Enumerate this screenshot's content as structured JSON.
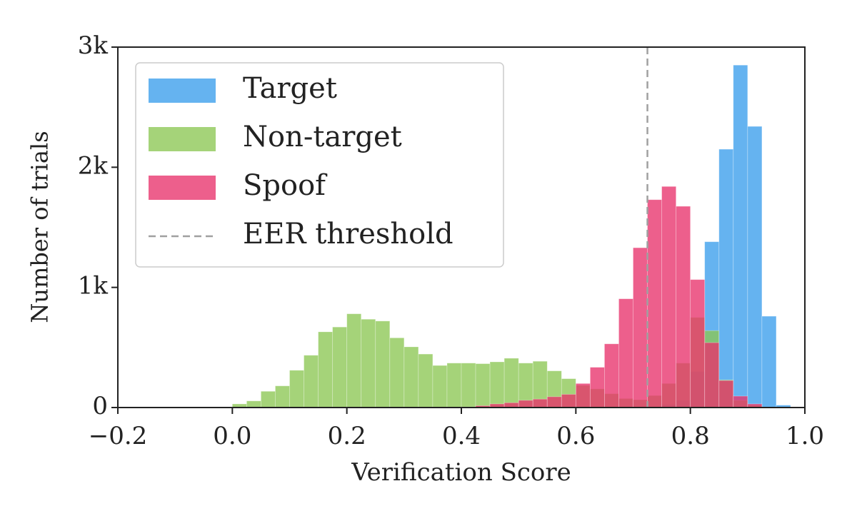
{
  "chart_data": {
    "type": "histogram",
    "x_label": "Verification Score",
    "y_label": "Number of trials",
    "xlim": [
      -0.2,
      1.0
    ],
    "ylim": [
      0,
      3000
    ],
    "xticks": [
      {
        "value": -0.2,
        "label": "−0.2"
      },
      {
        "value": 0,
        "label": "0.0"
      },
      0.2,
      0.4,
      0.6,
      0.8,
      {
        "value": 1,
        "label": "1.0"
      }
    ],
    "yticks": [
      0,
      {
        "value": 1000,
        "label": "1k"
      },
      {
        "value": 2000,
        "label": "2k"
      },
      {
        "value": 3000,
        "label": "3k"
      }
    ],
    "legend": "upper left",
    "bins": [
      0,
      0.025,
      0.05,
      0.075,
      0.1,
      0.125,
      0.15,
      0.175,
      0.2,
      0.225,
      0.25,
      0.275,
      0.3,
      0.325,
      0.35,
      0.375,
      0.4,
      0.425,
      0.45,
      0.475,
      0.5,
      0.525,
      0.55,
      0.575,
      0.6,
      0.625,
      0.65,
      0.675,
      0.7,
      0.725,
      0.75,
      0.775,
      0.8,
      0.825,
      0.85,
      0.875,
      0.9,
      0.925,
      0.95,
      0.975,
      1
    ],
    "series": [
      {
        "name": "Target",
        "color": "#3a9eec",
        "values": [
          0,
          0,
          0,
          0,
          0,
          0,
          0,
          0,
          0,
          0,
          0,
          0,
          0,
          0,
          0,
          0,
          0,
          0,
          0,
          0,
          0,
          0,
          0,
          0,
          0,
          0,
          0,
          0,
          0,
          0,
          25,
          60,
          300,
          1380,
          2150,
          2850,
          2340,
          760,
          20,
          0
        ]
      },
      {
        "name": "Non-target",
        "color": "#8cc653",
        "values": [
          30,
          55,
          135,
          180,
          310,
          435,
          630,
          670,
          780,
          735,
          720,
          580,
          505,
          445,
          350,
          370,
          370,
          365,
          380,
          410,
          370,
          385,
          305,
          240,
          185,
          155,
          115,
          75,
          65,
          100,
          200,
          370,
          750,
          640,
          230,
          60,
          20,
          0,
          0,
          0
        ]
      },
      {
        "name": "Spoof",
        "color": "#e8326b",
        "values": [
          0,
          0,
          0,
          0,
          0,
          0,
          0,
          0,
          0,
          0,
          0,
          0,
          0,
          0,
          0,
          0,
          5,
          15,
          30,
          40,
          60,
          70,
          90,
          110,
          200,
          335,
          530,
          905,
          1330,
          1730,
          1840,
          1675,
          1065,
          540,
          225,
          95,
          30,
          0,
          0,
          0
        ]
      }
    ],
    "threshold": {
      "name": "EER threshold",
      "value": 0.725,
      "color": "#a0a0a0"
    }
  }
}
